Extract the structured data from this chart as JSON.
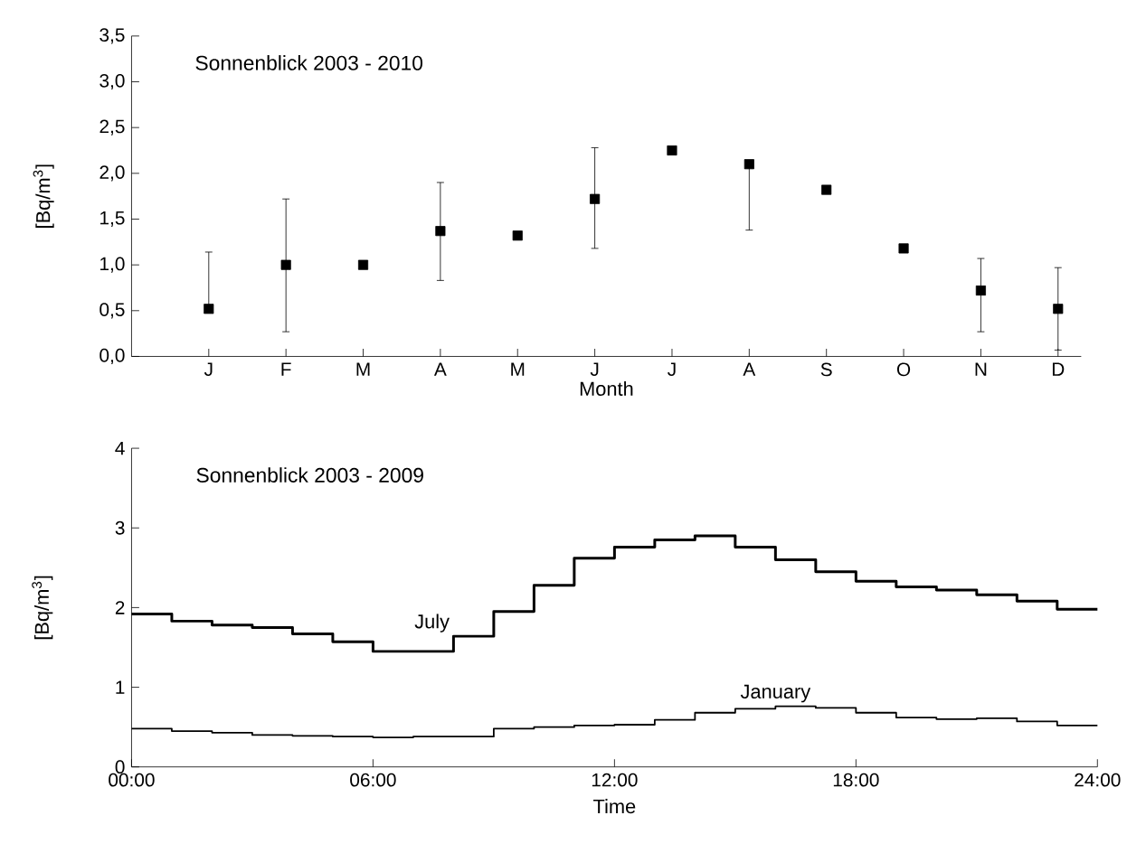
{
  "chart_data": [
    {
      "type": "scatter",
      "title": "Sonnenblick 2003 - 2010",
      "xlabel": "Month",
      "ylabel": "[Bq/m$^{3}$]",
      "categories": [
        "J",
        "F",
        "M",
        "A",
        "M",
        "J",
        "J",
        "A",
        "S",
        "O",
        "N",
        "D"
      ],
      "values": [
        0.52,
        1.0,
        1.0,
        1.37,
        1.32,
        1.72,
        2.25,
        2.1,
        1.82,
        1.18,
        0.72,
        0.52
      ],
      "errors": [
        [
          0.52,
          1.14
        ],
        [
          0.27,
          1.72
        ],
        null,
        [
          0.83,
          1.9
        ],
        null,
        [
          1.18,
          2.28
        ],
        null,
        [
          1.38,
          2.1
        ],
        null,
        null,
        [
          0.27,
          1.07
        ],
        [
          0.07,
          0.97
        ]
      ],
      "color": "#000000",
      "marker": "square",
      "ylim": [
        0,
        3.5
      ],
      "yticks": [
        {
          "value": 0,
          "label": "0,0"
        },
        {
          "value": 0.5,
          "label": "0,5"
        },
        {
          "value": 1,
          "label": "1,0"
        },
        {
          "value": 1.5,
          "label": "1,5"
        },
        {
          "value": 2,
          "label": "2,0"
        },
        {
          "value": 2.5,
          "label": "2,5"
        },
        {
          "value": 3,
          "label": "3,0"
        },
        {
          "value": 3.5,
          "label": "3,5"
        }
      ]
    },
    {
      "type": "step",
      "title": "Sonnenblick 2003 - 2009",
      "xlabel": "Time",
      "ylabel": "[Bq/m$^{3}$]",
      "x": [
        0,
        1,
        2,
        3,
        4,
        5,
        6,
        7,
        8,
        9,
        10,
        11,
        12,
        13,
        14,
        15,
        16,
        17,
        18,
        19,
        20,
        21,
        22,
        23,
        24
      ],
      "series": [
        {
          "name": "July",
          "color": "#000000",
          "values": [
            1.92,
            1.83,
            1.78,
            1.75,
            1.67,
            1.57,
            1.45,
            1.45,
            1.64,
            1.95,
            2.28,
            2.62,
            2.76,
            2.85,
            2.9,
            2.76,
            2.6,
            2.45,
            2.33,
            2.26,
            2.22,
            2.16,
            2.08,
            1.98,
            1.98
          ]
        },
        {
          "name": "January",
          "color": "#000000",
          "values": [
            0.48,
            0.45,
            0.43,
            0.4,
            0.39,
            0.38,
            0.37,
            0.38,
            0.38,
            0.48,
            0.5,
            0.52,
            0.53,
            0.59,
            0.68,
            0.73,
            0.76,
            0.74,
            0.68,
            0.62,
            0.6,
            0.61,
            0.57,
            0.52,
            0.52
          ]
        }
      ],
      "xlim": [
        0,
        24
      ],
      "xticks": [
        {
          "value": 0,
          "label": "00:00"
        },
        {
          "value": 6,
          "label": "06:00"
        },
        {
          "value": 12,
          "label": "12:00"
        },
        {
          "value": 18,
          "label": "18:00"
        },
        {
          "value": 24,
          "label": "24:00"
        }
      ],
      "ylim": [
        0,
        4
      ],
      "yticks": [
        0,
        1,
        2,
        3,
        4
      ],
      "line_style": "solid",
      "marker": "none"
    }
  ]
}
